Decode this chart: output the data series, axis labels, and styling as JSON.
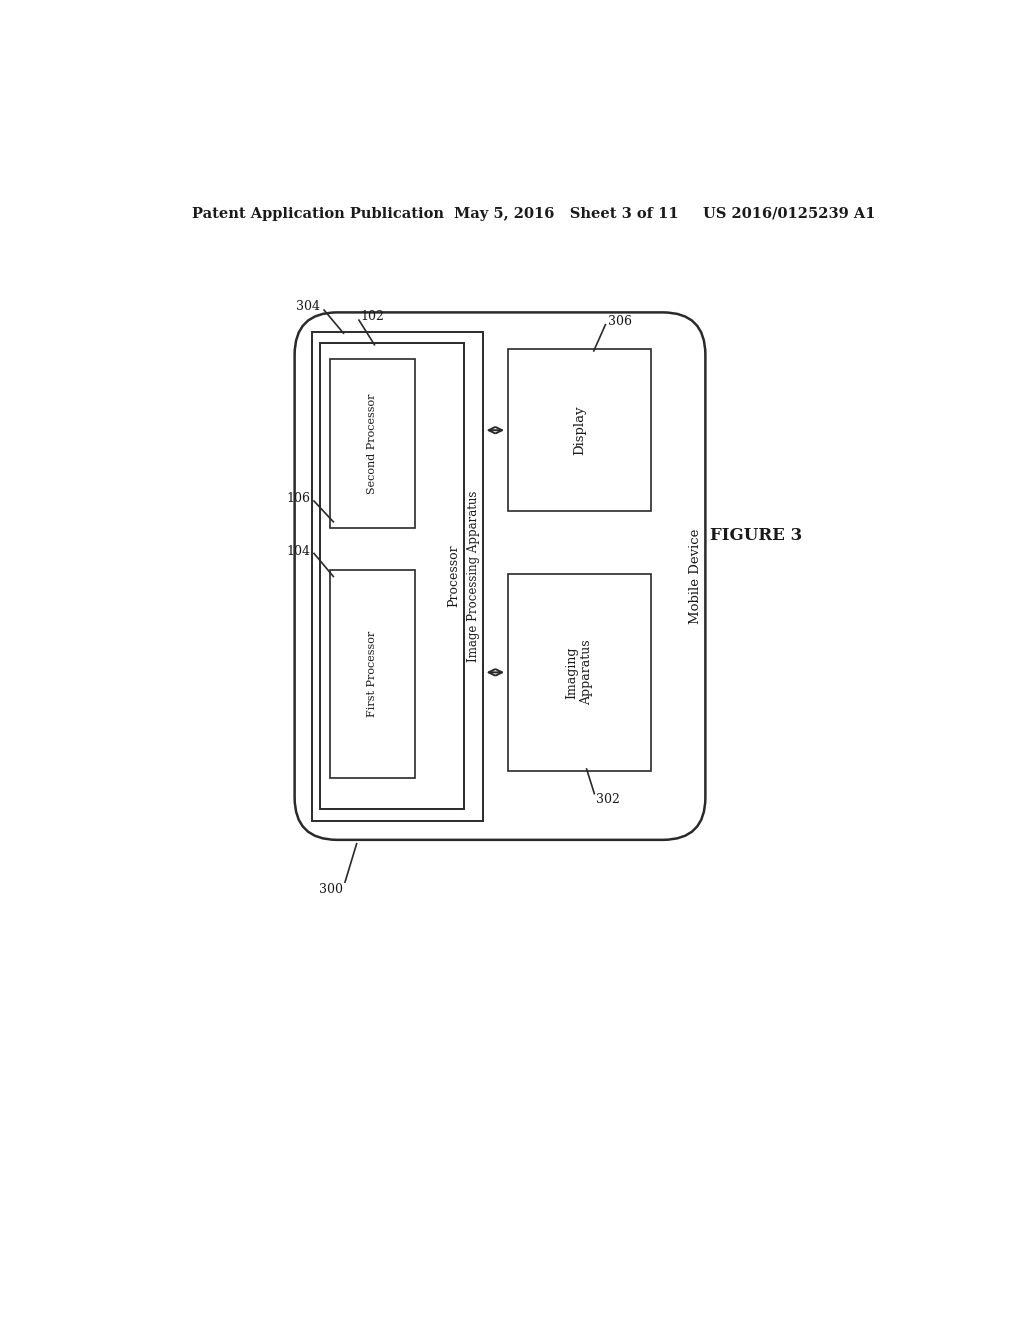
{
  "bg_color": "#ffffff",
  "header_left": "Patent Application Publication",
  "header_mid": "May 5, 2016   Sheet 3 of 11",
  "header_right": "US 2016/0125239 A1",
  "figure_label": "FIGURE 3",
  "mobile_device_label": "Mobile Device",
  "mobile_device_label_num": "300",
  "image_proc_apparatus_label": "Image Processing Apparatus",
  "image_proc_apparatus_num": "304",
  "processor_label": "Processor",
  "processor_num": "102",
  "first_processor_label": "First Processor",
  "first_processor_num": "104",
  "second_processor_label": "Second Processor",
  "second_processor_num": "106",
  "display_label": "Display",
  "display_num": "306",
  "imaging_apparatus_label": "Imaging\nApparatus",
  "imaging_apparatus_num": "302",
  "line_color": "#2a2a2a",
  "text_color": "#1a1a1a",
  "font_family": "DejaVu Serif"
}
